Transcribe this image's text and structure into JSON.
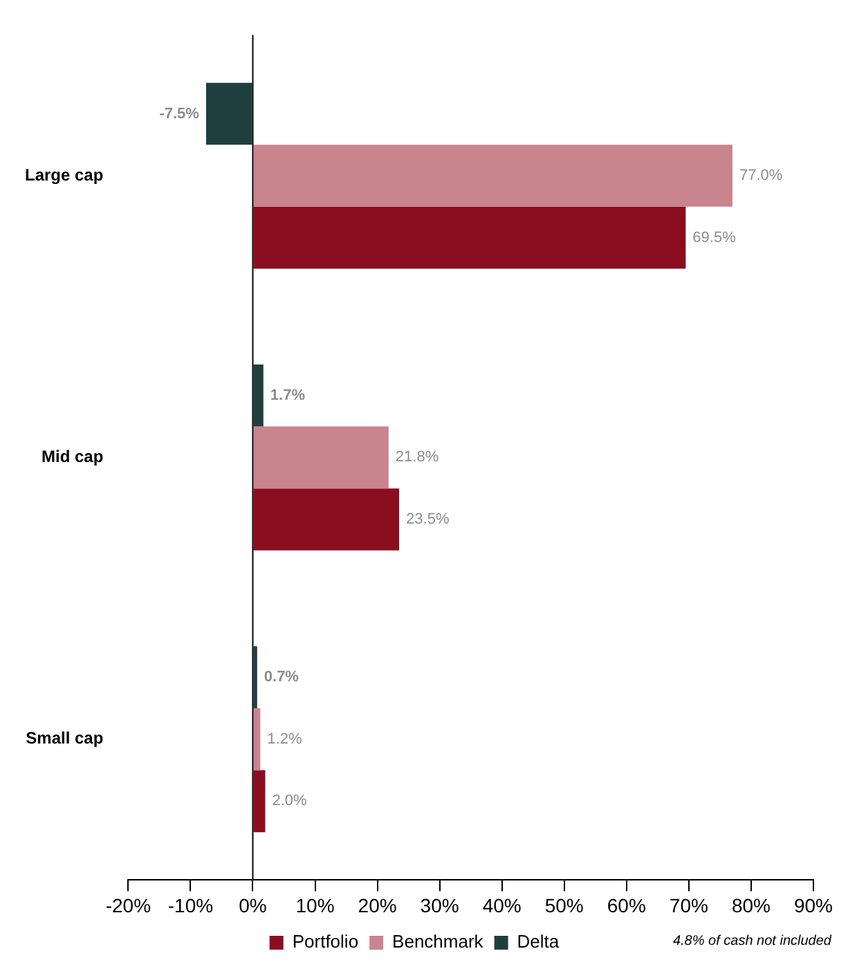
{
  "chart_data": {
    "type": "bar",
    "orientation": "horizontal",
    "categories": [
      "Large cap",
      "Mid cap",
      "Small cap"
    ],
    "series": [
      {
        "name": "Portfolio",
        "color": "#8b0e20",
        "values": [
          69.5,
          23.5,
          2.0
        ],
        "value_labels": [
          "69.5%",
          "23.5%",
          "2.0%"
        ]
      },
      {
        "name": "Benchmark",
        "color": "#c9848e",
        "values": [
          77.0,
          21.8,
          1.2
        ],
        "value_labels": [
          "77.0%",
          "21.8%",
          "1.2%"
        ]
      },
      {
        "name": "Delta",
        "color": "#1f3f3f",
        "values": [
          -7.5,
          1.7,
          0.7
        ],
        "value_labels": [
          "-7.5%",
          "1.7%",
          "0.7%"
        ]
      }
    ],
    "xlim": [
      -20,
      90
    ],
    "xticks": [
      {
        "value": -20,
        "label": "-20%"
      },
      {
        "value": -10,
        "label": "-10%"
      },
      {
        "value": 0,
        "label": "0%"
      },
      {
        "value": 10,
        "label": "10%"
      },
      {
        "value": 20,
        "label": "20%"
      },
      {
        "value": 30,
        "label": "30%"
      },
      {
        "value": 40,
        "label": "40%"
      },
      {
        "value": 50,
        "label": "50%"
      },
      {
        "value": 60,
        "label": "60%"
      },
      {
        "value": 70,
        "label": "70%"
      },
      {
        "value": 80,
        "label": "80%"
      },
      {
        "value": 90,
        "label": "90%"
      }
    ],
    "legend": "bottom",
    "grid": false,
    "ref_lines": [
      {
        "axis": "x",
        "value": 0,
        "color": "#000000"
      }
    ],
    "annotations": [
      "4.8% of cash not included"
    ]
  }
}
